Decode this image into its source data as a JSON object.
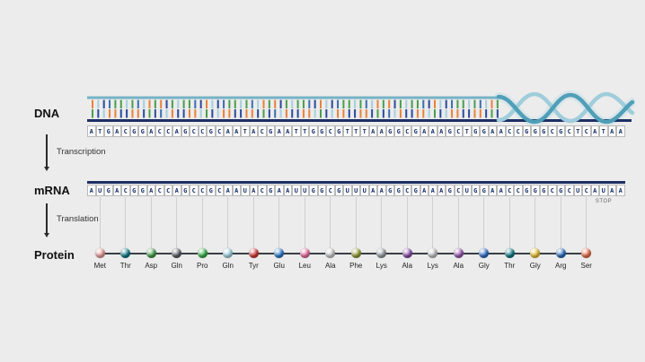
{
  "background": "#ececec",
  "dna": {
    "label": "DNA",
    "sequence": "ATGACGGACCAGCCGCAATACGAATTGGCGTTTAAGGCGAAAGCTGGAACCGGGCGCTCATAA",
    "strand_top_color": "#74b2c6",
    "strand_bottom_color": "#1d2f63",
    "helix_ribbon_dark": "#4f9fb8",
    "helix_ribbon_light": "#9fcddb",
    "helix_glow": "#c2dde6",
    "base_pair_colors": [
      [
        "#e8823c",
        "#4a9e4f"
      ],
      [
        "#2b4a9b",
        "#a6cede"
      ],
      [
        "#3a6fb0",
        "#e8823c"
      ],
      [
        "#4a9e4f",
        "#2b4a9b"
      ]
    ]
  },
  "transcription": {
    "label": "Transcription"
  },
  "mrna": {
    "label": "mRNA",
    "sequence": "AUGACGGACCAGCCGCAAUACGAAUUGGCGUUUAAGGCGAAAGCUGGAACCGGGCGCUCAUAA",
    "backbone_color": "#1d2f63",
    "stop_label": "STOP"
  },
  "translation": {
    "label": "Translation"
  },
  "protein": {
    "label": "Protein",
    "residues": [
      {
        "code": "Met",
        "color": "#f0a3a0"
      },
      {
        "code": "Thr",
        "color": "#0e7f8c"
      },
      {
        "code": "Asp",
        "color": "#44a24d"
      },
      {
        "code": "Gln",
        "color": "#5c6165"
      },
      {
        "code": "Pro",
        "color": "#35b54a"
      },
      {
        "code": "Gln",
        "color": "#a8dcec"
      },
      {
        "code": "Tyr",
        "color": "#d93a35"
      },
      {
        "code": "Glu",
        "color": "#2a7fd4"
      },
      {
        "code": "Leu",
        "color": "#ef6fa7"
      },
      {
        "code": "Ala",
        "color": "#d2d2d2"
      },
      {
        "code": "Phe",
        "color": "#97a336"
      },
      {
        "code": "Lys",
        "color": "#9aa0a4"
      },
      {
        "code": "Ala",
        "color": "#8e4fae"
      },
      {
        "code": "Lys",
        "color": "#c9c9c9"
      },
      {
        "code": "Ala",
        "color": "#9b59b6"
      },
      {
        "code": "Gly",
        "color": "#2f6fd0"
      },
      {
        "code": "Thr",
        "color": "#0d7f8a"
      },
      {
        "code": "Gly",
        "color": "#f0c832"
      },
      {
        "code": "Arg",
        "color": "#2a6fc4"
      },
      {
        "code": "Ser",
        "color": "#f2704d"
      }
    ]
  }
}
